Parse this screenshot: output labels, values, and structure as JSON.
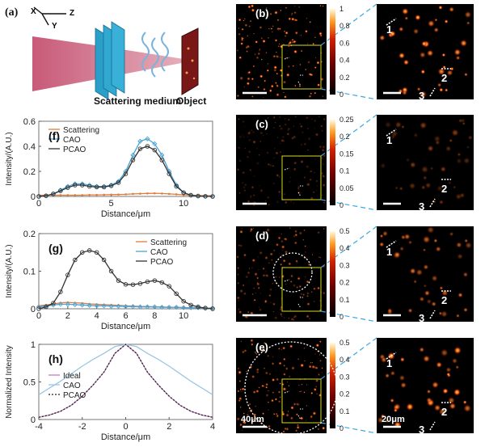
{
  "panel_a": {
    "label": "(a)",
    "axes": {
      "x": "X",
      "y": "Y",
      "z": "Z"
    },
    "medium_label": "Scattering medium",
    "object_label": "Object"
  },
  "colorbars": [
    {
      "ticks": [
        "1",
        "0.8",
        "0.6",
        "0.4",
        "0.2",
        "0"
      ]
    },
    {
      "ticks": [
        "0.25",
        "0.2",
        "0.15",
        "0.1",
        "0.05",
        "0"
      ]
    },
    {
      "ticks": [
        "0.5",
        "0.4",
        "0.3",
        "0.2",
        "0.1",
        "0"
      ]
    },
    {
      "ticks": [
        "0.5",
        "0.4",
        "0.3",
        "0.2",
        "0.1",
        "0"
      ]
    }
  ],
  "image_panels": [
    {
      "label": "(b)"
    },
    {
      "label": "(c)"
    },
    {
      "label": "(d)"
    },
    {
      "label": "(e)"
    }
  ],
  "markers": [
    "1",
    "2",
    "3"
  ],
  "scalebars": {
    "left": "40μm",
    "right": "20μm"
  },
  "chart_data": [
    {
      "type": "line",
      "panel": "(f)",
      "xlabel": "Distance/μm",
      "ylabel": "Intensity/(A.U.)",
      "xlim": [
        0,
        12
      ],
      "ylim": [
        0,
        0.6
      ],
      "xticks": [
        "0",
        "5",
        "10"
      ],
      "yticks": [
        "0",
        "0.2",
        "0.4",
        "0.6"
      ],
      "legend": "top-left",
      "x": [
        0,
        0.5,
        1,
        1.5,
        2,
        2.5,
        3,
        3.5,
        4,
        4.5,
        5,
        5.5,
        6,
        6.5,
        7,
        7.5,
        8,
        8.5,
        9,
        9.5,
        10,
        10.5,
        11,
        11.5,
        12
      ],
      "series": [
        {
          "name": "Scattering",
          "color": "#e07b39",
          "marker": "dot",
          "values": [
            0.01,
            0.01,
            0.01,
            0.01,
            0.01,
            0.01,
            0.01,
            0.012,
            0.012,
            0.013,
            0.014,
            0.015,
            0.017,
            0.02,
            0.022,
            0.024,
            0.025,
            0.023,
            0.02,
            0.017,
            0.013,
            0.01,
            0.008,
            0.006,
            0.005
          ]
        },
        {
          "name": "CAO",
          "color": "#4aa3d6",
          "marker": "diamond",
          "values": [
            0.0,
            0.005,
            0.02,
            0.05,
            0.08,
            0.1,
            0.1,
            0.09,
            0.08,
            0.08,
            0.09,
            0.12,
            0.2,
            0.33,
            0.44,
            0.46,
            0.42,
            0.33,
            0.2,
            0.09,
            0.03,
            0.01,
            0.003,
            0.001,
            0.0
          ]
        },
        {
          "name": "PCAO",
          "color": "#333333",
          "marker": "circle",
          "values": [
            0.0,
            0.005,
            0.02,
            0.045,
            0.07,
            0.09,
            0.09,
            0.08,
            0.075,
            0.075,
            0.085,
            0.11,
            0.18,
            0.29,
            0.38,
            0.4,
            0.37,
            0.29,
            0.18,
            0.08,
            0.03,
            0.01,
            0.003,
            0.001,
            0.0
          ]
        }
      ]
    },
    {
      "type": "line",
      "panel": "(g)",
      "xlabel": "Distance/μm",
      "ylabel": "Intensity/(A.U.)",
      "xlim": [
        0,
        12
      ],
      "ylim": [
        0,
        0.2
      ],
      "xticks": [
        "0",
        "2",
        "4",
        "6",
        "8",
        "10"
      ],
      "yticks": [
        "0",
        "0.1",
        "0.2"
      ],
      "legend": "top-right",
      "x": [
        0,
        0.5,
        1,
        1.5,
        2,
        2.5,
        3,
        3.5,
        4,
        4.5,
        5,
        5.5,
        6,
        6.5,
        7,
        7.5,
        8,
        8.5,
        9,
        9.5,
        10,
        10.5,
        11,
        11.5,
        12
      ],
      "series": [
        {
          "name": "Scattering",
          "color": "#e07b39",
          "marker": "dot",
          "values": [
            0.008,
            0.01,
            0.013,
            0.016,
            0.017,
            0.016,
            0.015,
            0.013,
            0.012,
            0.011,
            0.01,
            0.009,
            0.008,
            0.007,
            0.006,
            0.006,
            0.005,
            0.005,
            0.004,
            0.004,
            0.003,
            0.003,
            0.003,
            0.002,
            0.002
          ]
        },
        {
          "name": "CAO",
          "color": "#4aa3d6",
          "marker": "diamond",
          "values": [
            0.005,
            0.007,
            0.01,
            0.012,
            0.012,
            0.011,
            0.01,
            0.009,
            0.008,
            0.008,
            0.007,
            0.007,
            0.006,
            0.006,
            0.005,
            0.005,
            0.005,
            0.004,
            0.004,
            0.004,
            0.003,
            0.003,
            0.003,
            0.002,
            0.002
          ]
        },
        {
          "name": "PCAO",
          "color": "#333333",
          "marker": "circle",
          "values": [
            0.0,
            0.005,
            0.015,
            0.045,
            0.09,
            0.13,
            0.15,
            0.155,
            0.15,
            0.13,
            0.1,
            0.075,
            0.065,
            0.064,
            0.067,
            0.072,
            0.075,
            0.07,
            0.06,
            0.04,
            0.02,
            0.01,
            0.005,
            0.002,
            0.0
          ]
        }
      ]
    },
    {
      "type": "line",
      "panel": "(h)",
      "xlabel": "Distance/μm",
      "ylabel": "Normalized Intensity",
      "xlim": [
        -4,
        4
      ],
      "ylim": [
        0,
        1
      ],
      "xticks": [
        "-4",
        "-2",
        "0",
        "2",
        "4"
      ],
      "yticks": [
        "0",
        "0.5",
        "1"
      ],
      "legend": "center-left",
      "x": [
        -4,
        -3.5,
        -3,
        -2.5,
        -2,
        -1.5,
        -1,
        -0.5,
        0,
        0.5,
        1,
        1.5,
        2,
        2.5,
        3,
        3.5,
        4
      ],
      "series": [
        {
          "name": "Ideal",
          "color": "#c080c0",
          "style": "solid",
          "values": [
            0.03,
            0.06,
            0.11,
            0.19,
            0.31,
            0.46,
            0.63,
            0.88,
            1.0,
            0.88,
            0.63,
            0.46,
            0.31,
            0.19,
            0.11,
            0.06,
            0.03
          ]
        },
        {
          "name": "CAO",
          "color": "#9ac7e4",
          "style": "solid",
          "values": [
            0.33,
            0.42,
            0.51,
            0.61,
            0.71,
            0.8,
            0.88,
            0.97,
            1.0,
            0.97,
            0.88,
            0.8,
            0.71,
            0.61,
            0.51,
            0.42,
            0.33
          ]
        },
        {
          "name": "PCAO",
          "color": "#222222",
          "style": "dotted",
          "values": [
            0.03,
            0.06,
            0.11,
            0.19,
            0.31,
            0.46,
            0.63,
            0.88,
            1.0,
            0.88,
            0.63,
            0.46,
            0.31,
            0.19,
            0.11,
            0.06,
            0.03
          ]
        }
      ]
    }
  ]
}
